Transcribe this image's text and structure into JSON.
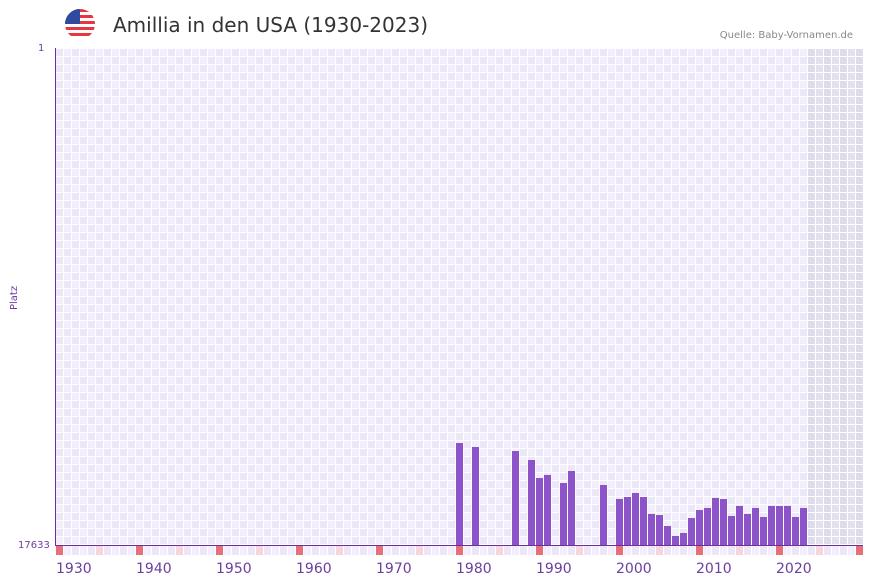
{
  "header": {
    "title": "Amillia in den USA (1930-2023)",
    "source": "Quelle: Baby-Vornamen.de",
    "flag": "us-flag-icon"
  },
  "axis": {
    "y_top": "1",
    "y_bottom": "17633",
    "y_label": "Platz"
  },
  "colors": {
    "bar": "#8c54c8",
    "decade_marker": "#e5707a",
    "half_decade_marker": "#f5d5de",
    "grid_a": "#f2eefc",
    "grid_b": "#ebe6f8",
    "future_shade": "#e2dfee"
  },
  "chart_data": {
    "type": "bar",
    "title": "Amillia in den USA (1930-2023)",
    "xlabel": "",
    "ylabel": "Platz",
    "ylim": [
      17633,
      1
    ],
    "x_ticks": [
      "1930",
      "1940",
      "1950",
      "1960",
      "1970",
      "1980",
      "1990",
      "2000",
      "2010",
      "2020"
    ],
    "x_range": [
      1930,
      2030
    ],
    "categories": [
      1980,
      1982,
      1987,
      1989,
      1990,
      1991,
      1993,
      1994,
      1998,
      2000,
      2001,
      2002,
      2003,
      2004,
      2005,
      2006,
      2007,
      2008,
      2009,
      2010,
      2011,
      2012,
      2013,
      2014,
      2015,
      2016,
      2017,
      2018,
      2019,
      2020,
      2021,
      2022,
      2023
    ],
    "values": [
      14014,
      14156,
      14298,
      14617,
      15256,
      15149,
      15433,
      15007,
      15504,
      16001,
      15930,
      15788,
      15930,
      16533,
      16569,
      16959,
      17314,
      17207,
      16675,
      16391,
      16320,
      15966,
      16001,
      16604,
      16249,
      16533,
      16320,
      16640,
      16249,
      16249,
      16249,
      16640,
      16320
    ],
    "grid": true,
    "legend": null
  }
}
